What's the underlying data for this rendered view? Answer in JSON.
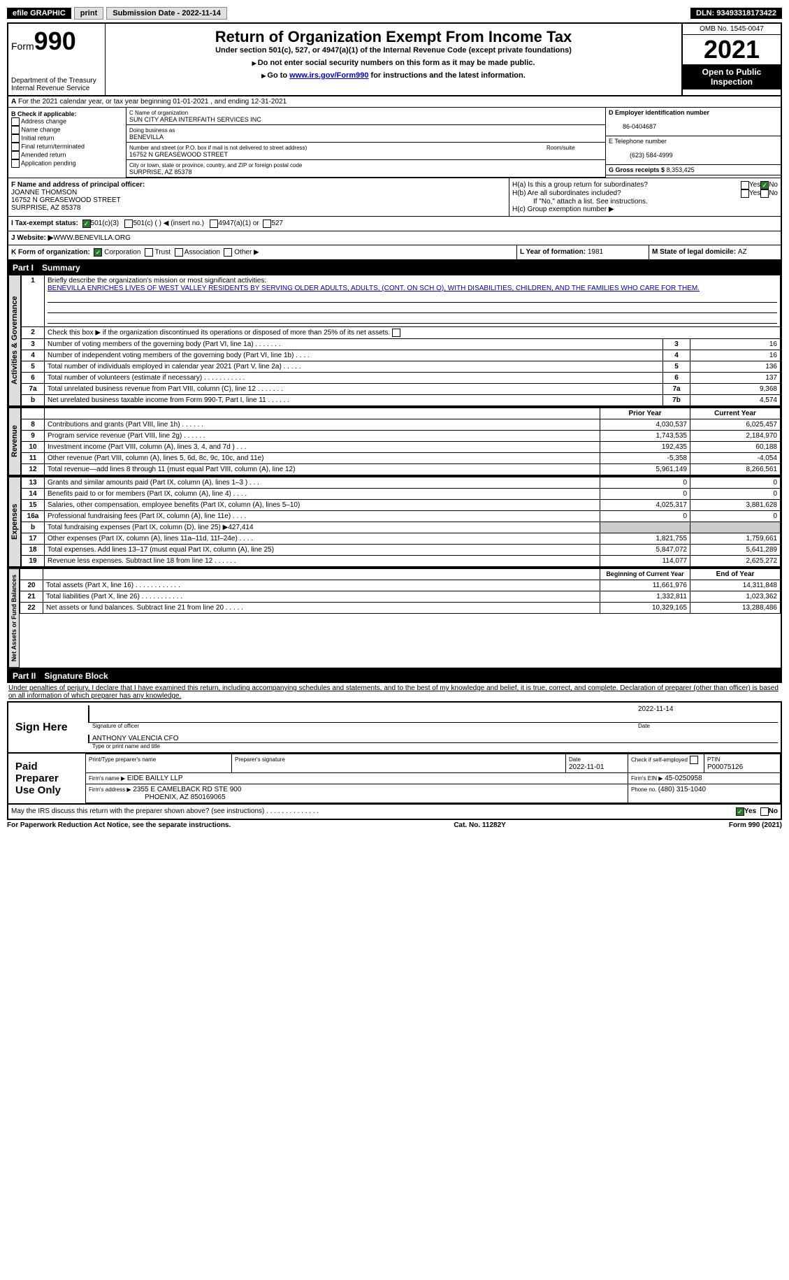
{
  "topbar": {
    "efile_label": "efile GRAPHIC",
    "print_btn": "print",
    "sub_date_label": "Submission Date - 2022-11-14",
    "dln_label": "DLN: 93493318173422"
  },
  "header": {
    "form_word": "Form",
    "form_num": "990",
    "dept": "Department of the Treasury",
    "irs": "Internal Revenue Service",
    "title": "Return of Organization Exempt From Income Tax",
    "sub1": "Under section 501(c), 527, or 4947(a)(1) of the Internal Revenue Code (except private foundations)",
    "sub2": "Do not enter social security numbers on this form as it may be made public.",
    "sub3_a": "Go to ",
    "sub3_link": "www.irs.gov/Form990",
    "sub3_b": " for instructions and the latest information.",
    "omb": "OMB No. 1545-0047",
    "year": "2021",
    "inspection": "Open to Public Inspection"
  },
  "period": {
    "line": "For the 2021 calendar year, or tax year beginning 01-01-2021    , and ending 12-31-2021",
    "a_label": "A"
  },
  "b": {
    "label": "B Check if applicable:",
    "items": [
      "Address change",
      "Name change",
      "Initial return",
      "Final return/terminated",
      "Amended return",
      "Application pending"
    ]
  },
  "c": {
    "name_label": "C Name of organization",
    "name": "SUN CITY AREA INTERFAITH SERVICES INC",
    "dba_label": "Doing business as",
    "dba": "BENEVILLA",
    "addr_label": "Number and street (or P.O. box if mail is not delivered to street address)",
    "room_label": "Room/suite",
    "addr": "16752 N GREASEWOOD STREET",
    "city_label": "City or town, state or province, country, and ZIP or foreign postal code",
    "city": "SURPRISE, AZ  85378"
  },
  "d": {
    "label": "D Employer identification number",
    "val": "86-0404687"
  },
  "e": {
    "label": "E Telephone number",
    "val": "(623) 584-4999"
  },
  "g": {
    "label": "G Gross receipts $",
    "val": "8,353,425"
  },
  "f": {
    "label": "F Name and address of principal officer:",
    "name": "JOANNE THOMSON",
    "addr": "16752 N GREASEWOOD STREET",
    "city": "SURPRISE, AZ  85378"
  },
  "h": {
    "a": "H(a)  Is this a group return for subordinates?",
    "b": "H(b)  Are all subordinates included?",
    "b_note": "If \"No,\" attach a list. See instructions.",
    "c": "H(c)  Group exemption number ▶",
    "yes": "Yes",
    "no": "No"
  },
  "i": {
    "label": "I    Tax-exempt status:",
    "o1": "501(c)(3)",
    "o2": "501(c) (  ) ◀ (insert no.)",
    "o3": "4947(a)(1) or",
    "o4": "527"
  },
  "j": {
    "label": "J   Website: ▶",
    "val": " WWW.BENEVILLA.ORG"
  },
  "k": {
    "label": "K Form of organization:",
    "o1": "Corporation",
    "o2": "Trust",
    "o3": "Association",
    "o4": "Other ▶"
  },
  "l": {
    "label": "L Year of formation: ",
    "val": "1981"
  },
  "m": {
    "label": "M State of legal domicile: ",
    "val": "AZ"
  },
  "part1": {
    "num": "Part I",
    "title": "Summary"
  },
  "mission": {
    "q": "Briefly describe the organization's mission or most significant activities:",
    "text": "BENEVILLA ENRICHES LIVES OF WEST VALLEY RESIDENTS BY SERVING OLDER ADULTS, ADULTS, (CONT. ON SCH O), WITH DISABILITIES, CHILDREN, AND THE FAMILIES WHO CARE FOR THEM."
  },
  "line2": "Check this box ▶        if the organization discontinued its operations or disposed of more than 25% of its net assets.",
  "vtabs": {
    "ag": "Activities & Governance",
    "rev": "Revenue",
    "exp": "Expenses",
    "net": "Net Assets or Fund Balances"
  },
  "rows_ag": [
    {
      "n": "3",
      "t": "Number of voting members of the governing body (Part VI, line 1a)   .    .    .    .    .    .    .",
      "b": "3",
      "v": "16"
    },
    {
      "n": "4",
      "t": "Number of independent voting members of the governing body (Part VI, line 1b)   .    .    .    .",
      "b": "4",
      "v": "16"
    },
    {
      "n": "5",
      "t": "Total number of individuals employed in calendar year 2021 (Part V, line 2a)   .    .    .    .    .",
      "b": "5",
      "v": "136"
    },
    {
      "n": "6",
      "t": "Total number of volunteers (estimate if necessary)    .    .    .    .    .    .    .    .    .    .    .",
      "b": "6",
      "v": "137"
    },
    {
      "n": "7a",
      "t": "Total unrelated business revenue from Part VIII, column (C), line 12    .    .    .    .    .    .    .",
      "b": "7a",
      "v": "9,368"
    },
    {
      "n": "b",
      "t": "Net unrelated business taxable income from Form 990-T, Part I, line 11   .    .    .    .    .    .",
      "b": "7b",
      "v": "4,574"
    }
  ],
  "col_hdrs": {
    "prior": "Prior Year",
    "current": "Current Year"
  },
  "rows_rev": [
    {
      "n": "8",
      "t": "Contributions and grants (Part VIII, line 1h)    .    .    .    .    .    .",
      "p": "4,030,537",
      "c": "6,025,457"
    },
    {
      "n": "9",
      "t": "Program service revenue (Part VIII, line 2g)    .    .    .    .    .    .",
      "p": "1,743,535",
      "c": "2,184,970"
    },
    {
      "n": "10",
      "t": "Investment income (Part VIII, column (A), lines 3, 4, and 7d )    .    .    .",
      "p": "192,435",
      "c": "60,188"
    },
    {
      "n": "11",
      "t": "Other revenue (Part VIII, column (A), lines 5, 6d, 8c, 9c, 10c, and 11e)",
      "p": "-5,358",
      "c": "-4,054"
    },
    {
      "n": "12",
      "t": "Total revenue—add lines 8 through 11 (must equal Part VIII, column (A), line 12)",
      "p": "5,961,149",
      "c": "8,266,561"
    }
  ],
  "rows_exp": [
    {
      "n": "13",
      "t": "Grants and similar amounts paid (Part IX, column (A), lines 1–3 )   .    .    .",
      "p": "0",
      "c": "0"
    },
    {
      "n": "14",
      "t": "Benefits paid to or for members (Part IX, column (A), line 4)   .    .    .    .",
      "p": "0",
      "c": "0"
    },
    {
      "n": "15",
      "t": "Salaries, other compensation, employee benefits (Part IX, column (A), lines 5–10)",
      "p": "4,025,317",
      "c": "3,881,628"
    },
    {
      "n": "16a",
      "t": "Professional fundraising fees (Part IX, column (A), line 11e)    .    .    .    .",
      "p": "0",
      "c": "0"
    },
    {
      "n": "b",
      "t": "Total fundraising expenses (Part IX, column (D), line 25) ▶427,414",
      "p": "",
      "c": "",
      "shade": true
    },
    {
      "n": "17",
      "t": "Other expenses (Part IX, column (A), lines 11a–11d, 11f–24e)   .    .    .    .",
      "p": "1,821,755",
      "c": "1,759,661"
    },
    {
      "n": "18",
      "t": "Total expenses. Add lines 13–17 (must equal Part IX, column (A), line 25)",
      "p": "5,847,072",
      "c": "5,641,289"
    },
    {
      "n": "19",
      "t": "Revenue less expenses. Subtract line 18 from line 12  .    .    .    .    .    .",
      "p": "114,077",
      "c": "2,625,272"
    }
  ],
  "col_hdrs2": {
    "begin": "Beginning of Current Year",
    "end": "End of Year"
  },
  "rows_net": [
    {
      "n": "20",
      "t": "Total assets (Part X, line 16)  .    .    .    .    .    .    .    .    .    .    .    .",
      "p": "11,661,976",
      "c": "14,311,848"
    },
    {
      "n": "21",
      "t": "Total liabilities (Part X, line 26)  .    .    .    .    .    .    .    .    .    .    .",
      "p": "1,332,811",
      "c": "1,023,362"
    },
    {
      "n": "22",
      "t": "Net assets or fund balances. Subtract line 21 from line 20  .    .    .    .    .",
      "p": "10,329,165",
      "c": "13,288,486"
    }
  ],
  "part2": {
    "num": "Part II",
    "title": "Signature Block"
  },
  "penalty": "Under penalties of perjury, I declare that I have examined this return, including accompanying schedules and statements, and to the best of my knowledge and belief, it is true, correct, and complete. Declaration of preparer (other than officer) is based on all information of which preparer has any knowledge.",
  "sign": {
    "here": "Sign Here",
    "sig_label": "Signature of officer",
    "date": "2022-11-14",
    "date_label": "Date",
    "name": "ANTHONY VALENCIA  CFO",
    "name_label": "Type or print name and title"
  },
  "prep": {
    "label": "Paid Preparer Use Only",
    "name_label": "Print/Type preparer's name",
    "sig_label": "Preparer's signature",
    "date_label": "Date",
    "date": "2022-11-01",
    "check_label": "Check         if self-employed",
    "ptin_label": "PTIN",
    "ptin": "P00075126",
    "firm_label": "Firm's name    ▶",
    "firm": "EIDE BAILLY LLP",
    "ein_label": "Firm's EIN ▶",
    "ein": "45-0250958",
    "addr_label": "Firm's address ▶",
    "addr": "2355 E CAMELBACK RD STE 900",
    "city": "PHOENIX, AZ  850169065",
    "phone_label": "Phone no. ",
    "phone": "(480) 315-1040"
  },
  "discuss": {
    "q": "May the IRS discuss this return with the preparer shown above? (see instructions)   .    .    .    .    .    .    .    .    .    .    .    .    .    .",
    "yes": "Yes",
    "no": "No"
  },
  "footer": {
    "left": "For Paperwork Reduction Act Notice, see the separate instructions.",
    "mid": "Cat. No. 11282Y",
    "right": "Form 990 (2021)"
  }
}
